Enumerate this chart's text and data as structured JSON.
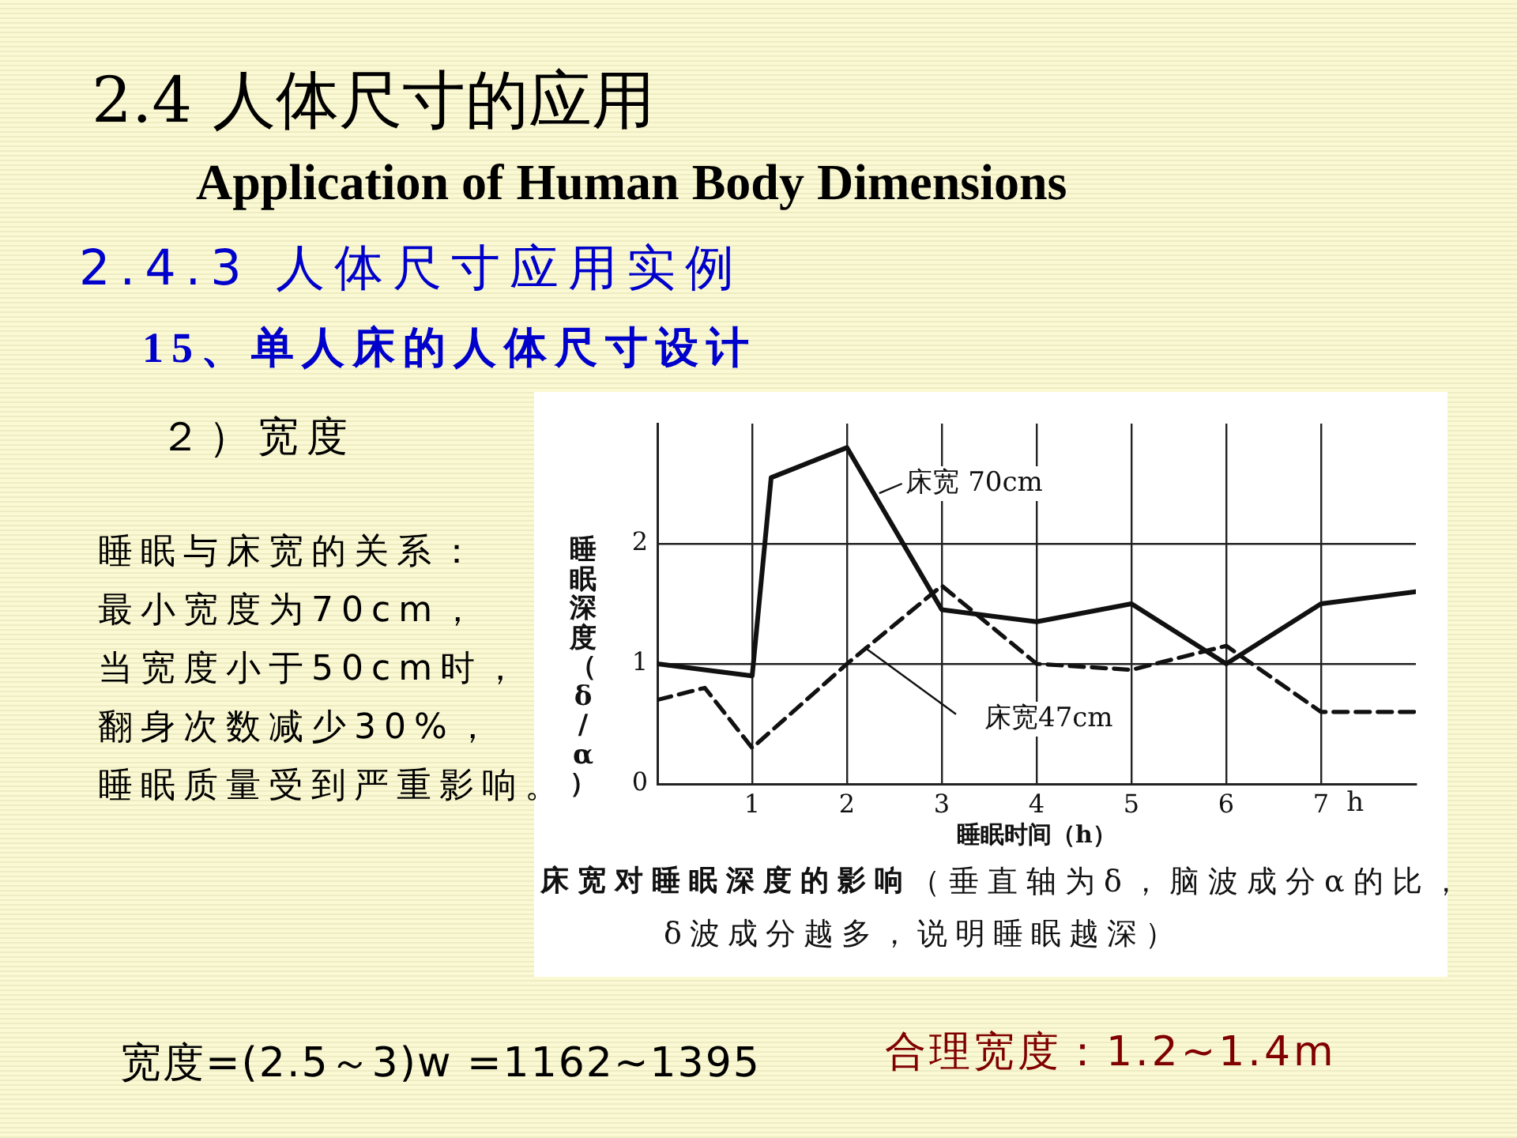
{
  "chart_data": {
    "type": "line",
    "title": "2.4 人体尺寸的应用",
    "subtitle": "Application of Human Body Dimensions",
    "xlabel": "睡眠时间（h）",
    "ylabel": "睡眠深度（δ/α）",
    "annotations": [
      "2.4.3 人体尺寸应用实例",
      "15、单人床的人体尺寸设计",
      "２）宽度",
      "睡眠与床宽的关系：",
      "最小宽度为70cm，",
      "当宽度小于50cm时，",
      "翻身次数减少30%，",
      "睡眠质量受到严重影响。",
      "h",
      "床宽对睡眠深度的影响",
      "（垂直轴为δ，脑波成分α的比，",
      "δ波成分越多，说明睡眠越深）",
      "宽度=(2.5～3)w =1162~1395",
      "合理宽度：1.2~1.4m"
    ],
    "series": [
      {
        "name": "床宽 70cm",
        "color": "#111111",
        "x": [
          0,
          1,
          1.2,
          2,
          3,
          4,
          5,
          6,
          7,
          8
        ],
        "values": [
          1,
          0.9,
          2.55,
          2.8,
          1.45,
          1.35,
          1.5,
          1,
          1.5,
          1.6
        ]
      },
      {
        "name": "床宽47cm",
        "color": "#111111",
        "line_style": "dashed",
        "x": [
          0,
          0.5,
          1,
          2,
          3,
          4,
          5,
          6,
          7,
          8
        ],
        "values": [
          0.7,
          0.8,
          0.3,
          1,
          1.65,
          1,
          0.95,
          1.15,
          0.6,
          0.6
        ]
      }
    ],
    "xlim": [
      0,
      8
    ],
    "ylim": [
      0,
      3
    ],
    "xticks": [
      1,
      2,
      3,
      4,
      5,
      6,
      7
    ],
    "yticks": [
      0,
      1,
      2
    ],
    "grid": true,
    "marker": "none",
    "line_style": "solid"
  }
}
